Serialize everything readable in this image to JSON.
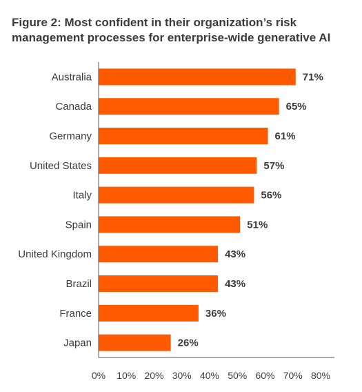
{
  "title": "Figure 2: Most confident in their organization’s risk management processes for enterprise-wide generative AI",
  "chart_data": {
    "type": "bar",
    "orientation": "horizontal",
    "title": "Figure 2: Most confident in their organization’s risk management processes for enterprise-wide generative AI",
    "categories": [
      "Australia",
      "Canada",
      "Germany",
      "United States",
      "Italy",
      "Spain",
      "United Kingdom",
      "Brazil",
      "France",
      "Japan"
    ],
    "values": [
      71,
      65,
      61,
      57,
      56,
      51,
      43,
      43,
      36,
      26
    ],
    "value_labels": [
      "71%",
      "65%",
      "61%",
      "57%",
      "56%",
      "51%",
      "43%",
      "43%",
      "36%",
      "26%"
    ],
    "xlim": [
      0,
      80
    ],
    "xticks": [
      "0%",
      "10%",
      "20%",
      "30%",
      "40%",
      "50%",
      "60%",
      "70%",
      "80%"
    ],
    "grid": false,
    "bar_color": "#ff5a00"
  }
}
